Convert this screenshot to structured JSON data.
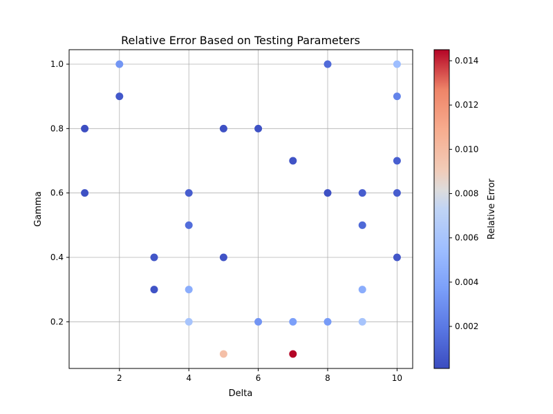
{
  "chart_data": {
    "type": "scatter",
    "title": "Relative Error Based on Testing Parameters",
    "xlabel": "Delta",
    "ylabel": "Gamma",
    "xlim": [
      0.55,
      10.45
    ],
    "ylim": [
      0.055,
      1.045
    ],
    "xticks": [
      2,
      4,
      6,
      8,
      10
    ],
    "yticks": [
      0.2,
      0.4,
      0.6,
      0.8,
      1.0
    ],
    "xtick_labels": [
      "2",
      "4",
      "6",
      "8",
      "10"
    ],
    "ytick_labels": [
      "0.2",
      "0.4",
      "0.6",
      "0.8",
      "1.0"
    ],
    "grid": true,
    "colormap": "coolwarm",
    "colorbar": {
      "label": "Relative Error",
      "range": [
        0.0001,
        0.0145
      ],
      "ticks": [
        0.002,
        0.004,
        0.006,
        0.008,
        0.01,
        0.012,
        0.014
      ],
      "tick_labels": [
        "0.002",
        "0.004",
        "0.006",
        "0.008",
        "0.010",
        "0.012",
        "0.014"
      ]
    },
    "points": [
      {
        "x": 1,
        "y": 0.8,
        "c": 0.0002
      },
      {
        "x": 1,
        "y": 0.6,
        "c": 0.0003
      },
      {
        "x": 2,
        "y": 1.0,
        "c": 0.0033
      },
      {
        "x": 2,
        "y": 0.9,
        "c": 0.0006
      },
      {
        "x": 3,
        "y": 0.4,
        "c": 0.0005
      },
      {
        "x": 3,
        "y": 0.3,
        "c": 0.0004
      },
      {
        "x": 4,
        "y": 0.6,
        "c": 0.0008
      },
      {
        "x": 4,
        "y": 0.5,
        "c": 0.0015
      },
      {
        "x": 4,
        "y": 0.3,
        "c": 0.0045
      },
      {
        "x": 4,
        "y": 0.2,
        "c": 0.006
      },
      {
        "x": 5,
        "y": 0.8,
        "c": 0.0003
      },
      {
        "x": 5,
        "y": 0.4,
        "c": 0.0004
      },
      {
        "x": 5,
        "y": 0.1,
        "c": 0.0098
      },
      {
        "x": 6,
        "y": 0.8,
        "c": 0.0003
      },
      {
        "x": 6,
        "y": 0.2,
        "c": 0.0032
      },
      {
        "x": 7,
        "y": 0.7,
        "c": 0.0004
      },
      {
        "x": 7,
        "y": 0.2,
        "c": 0.0037
      },
      {
        "x": 7,
        "y": 0.1,
        "c": 0.0145
      },
      {
        "x": 8,
        "y": 1.0,
        "c": 0.0014
      },
      {
        "x": 8,
        "y": 0.6,
        "c": 0.0003
      },
      {
        "x": 8,
        "y": 0.2,
        "c": 0.0035
      },
      {
        "x": 9,
        "y": 0.6,
        "c": 0.0008
      },
      {
        "x": 9,
        "y": 0.5,
        "c": 0.0013
      },
      {
        "x": 9,
        "y": 0.3,
        "c": 0.0045
      },
      {
        "x": 9,
        "y": 0.2,
        "c": 0.006
      },
      {
        "x": 10,
        "y": 1.0,
        "c": 0.0055
      },
      {
        "x": 10,
        "y": 0.9,
        "c": 0.0025
      },
      {
        "x": 10,
        "y": 0.7,
        "c": 0.0009
      },
      {
        "x": 10,
        "y": 0.6,
        "c": 0.0008
      },
      {
        "x": 10,
        "y": 0.4,
        "c": 0.0005
      }
    ]
  }
}
